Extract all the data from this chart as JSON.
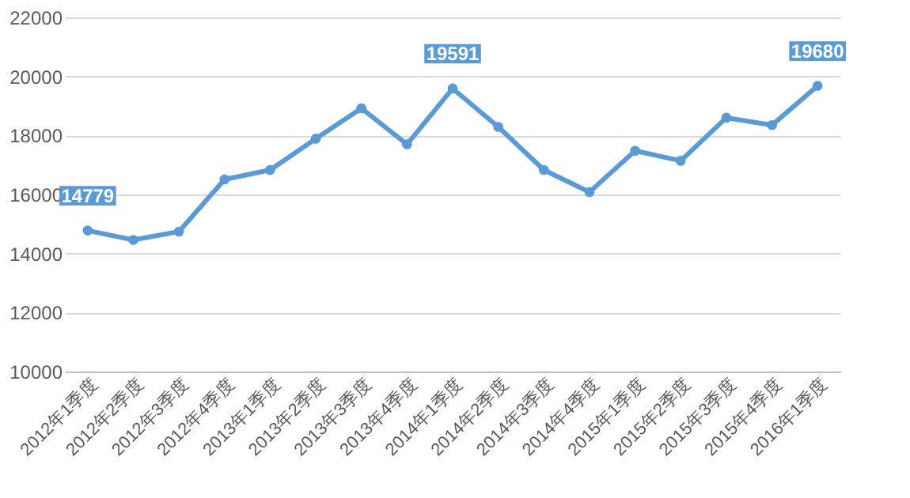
{
  "chart_data": {
    "type": "line",
    "categories": [
      "2012年1季度",
      "2012年2季度",
      "2012年3季度",
      "2012年4季度",
      "2013年1季度",
      "2013年2季度",
      "2013年3季度",
      "2013年4季度",
      "2014年1季度",
      "2014年2季度",
      "2014年3季度",
      "2014年4季度",
      "2015年1季度",
      "2015年2季度",
      "2015年3季度",
      "2015年4季度",
      "2016年1季度"
    ],
    "series": [
      {
        "color": "#5b9bd5",
        "values": [
          14779,
          14460,
          14740,
          16510,
          16830,
          17890,
          18920,
          17700,
          19591,
          18290,
          16830,
          16080,
          17480,
          17140,
          18600,
          18350,
          19680
        ],
        "value_labels": [
          "14779",
          null,
          null,
          null,
          null,
          null,
          null,
          null,
          "19591",
          null,
          null,
          null,
          null,
          null,
          null,
          null,
          "19680"
        ]
      }
    ],
    "ylim": [
      10000,
      22000
    ],
    "yticks": [
      10000,
      12000,
      14000,
      16000,
      18000,
      20000,
      22000
    ],
    "grid": "y",
    "marker": "circle",
    "line_style": "solid"
  }
}
